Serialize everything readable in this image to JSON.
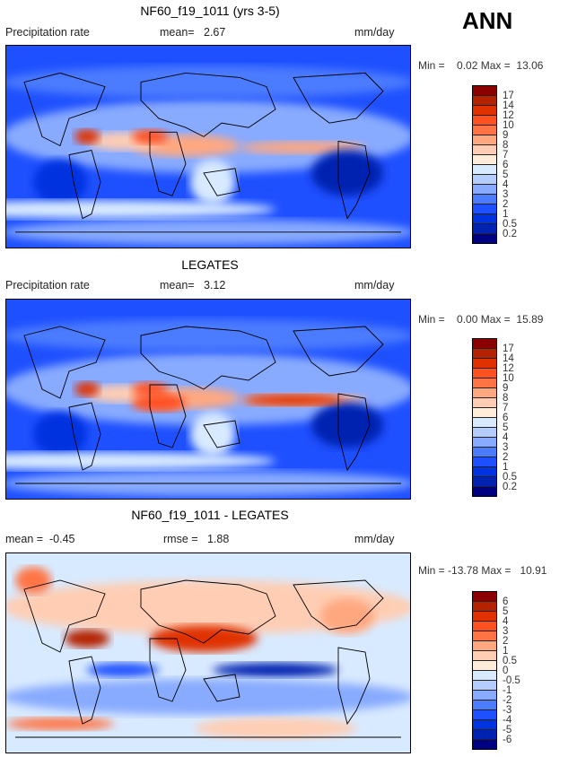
{
  "season": "ANN",
  "colors": [
    "#8b0000",
    "#b42200",
    "#e03200",
    "#ff5020",
    "#ff7444",
    "#ffa880",
    "#ffcdb3",
    "#ffecd9",
    "#d8eaff",
    "#b5ccff",
    "#88aaff",
    "#4b7cff",
    "#1e50ff",
    "#0033e0",
    "#0022b0",
    "#000082"
  ],
  "chart_data": [
    {
      "type": "heatmap",
      "title": "NF60_f19_1011 (yrs 3-5)",
      "variable": "Precipitation rate",
      "stat1_label": "mean=",
      "stat1_value": "2.67",
      "units": "mm/day",
      "min_label": "Min =",
      "min": "0.02",
      "max_label": "Max =",
      "max": "13.06",
      "levels": [
        "17",
        "14",
        "12",
        "10",
        "9",
        "8",
        "7",
        "6",
        "5",
        "4",
        "3",
        "2",
        "1",
        "0.5",
        "0.2"
      ]
    },
    {
      "type": "heatmap",
      "title": "LEGATES",
      "variable": "Precipitation rate",
      "stat1_label": "mean=",
      "stat1_value": "3.12",
      "units": "mm/day",
      "min_label": "Min =",
      "min": "0.00",
      "max_label": "Max =",
      "max": "15.89",
      "levels": [
        "17",
        "14",
        "12",
        "10",
        "9",
        "8",
        "7",
        "6",
        "5",
        "4",
        "3",
        "2",
        "1",
        "0.5",
        "0.2"
      ]
    },
    {
      "type": "heatmap",
      "title": "NF60_f19_1011 - LEGATES",
      "variable": "mean =",
      "stat1_label": "rmse =",
      "stat1_value": "1.88",
      "mean_value": "-0.45",
      "units": "mm/day",
      "min_label": "Min =",
      "min": "-13.78",
      "max_label": "Max =",
      "max": "10.91",
      "levels": [
        "6",
        "5",
        "4",
        "3",
        "2",
        "1",
        "0.5",
        "0",
        "-0.5",
        "-1",
        "-2",
        "-3",
        "-4",
        "-5",
        "-6"
      ]
    }
  ]
}
